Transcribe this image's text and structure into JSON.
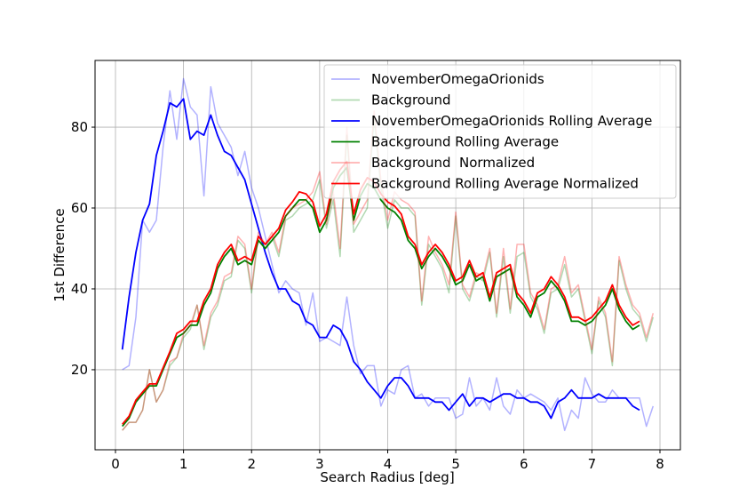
{
  "chart_data": {
    "type": "line",
    "title": "",
    "xlabel": "Search Radius [deg]",
    "ylabel": "1st Difference",
    "xlim": [
      -0.3,
      8.3
    ],
    "ylim": [
      0.2,
      96.5
    ],
    "xticks": [
      0,
      1,
      2,
      3,
      4,
      5,
      6,
      7,
      8
    ],
    "yticks": [
      20,
      40,
      60,
      80
    ],
    "grid": true,
    "legend_position": "top-right",
    "x_start": 0.1,
    "x_step": 0.1,
    "series": [
      {
        "name": "NovemberOmegaOrionids",
        "color": "#0000ff",
        "opacity": 0.3,
        "values": [
          20,
          21,
          33,
          57,
          54,
          57,
          75,
          89,
          77,
          92,
          85,
          83,
          63,
          90,
          81,
          78,
          75,
          68,
          74,
          65,
          60,
          53,
          46,
          39,
          42,
          40,
          39,
          31,
          39,
          27,
          28,
          27,
          26,
          38,
          26,
          19,
          21,
          21,
          11,
          15,
          14,
          20,
          21,
          13,
          14,
          11,
          13,
          13,
          13,
          8,
          9,
          18,
          11,
          13,
          10,
          18,
          11,
          9,
          15,
          13,
          14,
          13,
          12,
          10,
          13,
          5,
          10,
          8,
          18,
          14,
          12,
          12,
          15,
          13,
          13,
          13,
          13,
          6,
          11
        ]
      },
      {
        "name": "Background",
        "color": "#008000",
        "opacity": 0.3,
        "values": [
          5,
          7,
          7,
          10,
          20,
          12,
          15,
          21,
          23,
          28,
          30,
          36,
          25,
          33,
          36,
          42,
          43,
          52,
          50,
          39,
          53,
          50,
          53,
          48,
          57,
          58,
          60,
          61,
          62,
          67,
          55,
          62,
          48,
          78,
          54,
          57,
          60,
          82,
          65,
          55,
          62,
          60,
          60,
          58,
          36,
          51,
          48,
          45,
          39,
          58,
          40,
          37,
          43,
          42,
          49,
          33,
          48,
          34,
          48,
          49,
          38,
          35,
          29,
          39,
          40,
          46,
          38,
          40,
          32,
          24,
          37,
          33,
          21,
          47,
          40,
          35,
          33,
          27,
          33
        ]
      },
      {
        "name": "NovemberOmegaOrionids Rolling Average",
        "color": "#0000ff",
        "opacity": 1,
        "values": [
          25,
          38,
          49,
          57,
          61,
          73,
          79,
          86,
          85,
          87,
          77,
          79,
          78,
          83,
          78,
          74,
          73,
          70,
          67,
          61,
          55,
          49,
          44,
          40,
          40,
          37,
          36,
          32,
          31,
          28,
          28,
          31,
          30,
          27,
          22,
          20,
          17,
          15,
          13,
          16,
          18,
          18,
          16,
          13,
          13,
          13,
          12,
          12,
          10,
          12,
          14,
          11,
          13,
          13,
          12,
          13,
          14,
          14,
          13,
          13,
          12,
          12,
          11,
          8,
          12,
          13,
          15,
          13,
          13,
          13,
          14,
          13,
          13,
          13,
          13,
          11,
          10
        ]
      },
      {
        "name": "Background Rolling Average",
        "color": "#008000",
        "opacity": 1,
        "values": [
          6,
          8,
          12,
          14,
          16,
          16,
          20,
          24,
          28,
          29,
          31,
          31,
          36,
          39,
          45,
          48,
          50,
          46,
          47,
          46,
          52,
          50,
          52,
          54,
          58,
          60,
          62,
          62,
          60,
          54,
          57,
          65,
          68,
          70,
          57,
          63,
          66,
          65,
          62,
          60,
          59,
          57,
          52,
          50,
          45,
          48,
          50,
          48,
          45,
          41,
          42,
          46,
          42,
          43,
          37,
          43,
          44,
          45,
          38,
          36,
          33,
          38,
          39,
          42,
          40,
          37,
          32,
          32,
          31,
          32,
          34,
          36,
          40,
          35,
          32,
          30,
          31
        ]
      },
      {
        "name": "Background  Normalized",
        "color": "#ff0000",
        "opacity": 0.3,
        "values": [
          5,
          7,
          7,
          10,
          20,
          12,
          15,
          22,
          23,
          29,
          31,
          36,
          26,
          34,
          37,
          43,
          44,
          53,
          51,
          40,
          54,
          51,
          54,
          49,
          58,
          60,
          61,
          62,
          64,
          69,
          56,
          64,
          50,
          80,
          56,
          59,
          62,
          84,
          67,
          57,
          64,
          62,
          61,
          59,
          37,
          53,
          49,
          46,
          41,
          59,
          41,
          38,
          44,
          43,
          50,
          34,
          50,
          35,
          51,
          51,
          39,
          36,
          30,
          40,
          41,
          48,
          39,
          41,
          33,
          25,
          38,
          34,
          22,
          48,
          41,
          36,
          34,
          28,
          34
        ]
      },
      {
        "name": "Background Rolling Average Normalized",
        "color": "#ff0000",
        "opacity": 1,
        "values": [
          6.5,
          8.5,
          12.5,
          14.5,
          16.5,
          16.5,
          20.5,
          24.5,
          29,
          30,
          32,
          32,
          37,
          40,
          46,
          49,
          51,
          47,
          48,
          47,
          53,
          51,
          53,
          55,
          59.5,
          61.5,
          64,
          63.5,
          61.5,
          55.5,
          58.5,
          66.5,
          69.5,
          71.5,
          58.5,
          64.5,
          67.5,
          66.5,
          63.5,
          61.5,
          60.5,
          58.5,
          53,
          51,
          46,
          49,
          51,
          49,
          46,
          42,
          43,
          47,
          43,
          44,
          38,
          44,
          45,
          46,
          39,
          37,
          34,
          39,
          40,
          43,
          41,
          38,
          33,
          33,
          32,
          33,
          35,
          37,
          41,
          36,
          33,
          31,
          32
        ]
      }
    ]
  }
}
